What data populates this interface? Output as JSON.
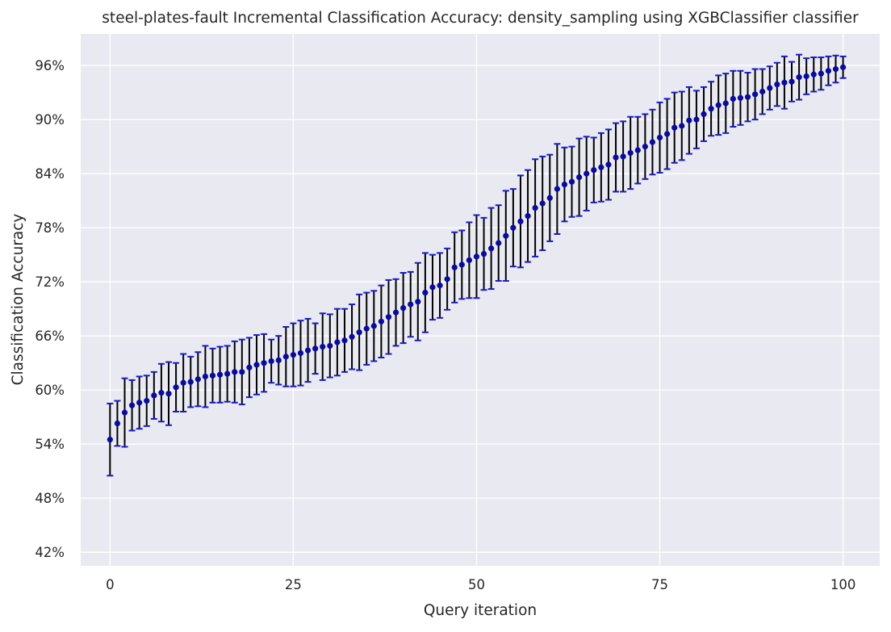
{
  "chart_data": {
    "type": "scatter",
    "title": "steel-plates-fault Incremental Classification Accuracy: density_sampling using XGBClassifier classifier",
    "xlabel": "Query iteration",
    "ylabel": "Classification Accuracy",
    "xlim": [
      -4,
      105
    ],
    "ylim": [
      40.5,
      99.5
    ],
    "x_ticks": [
      0,
      25,
      50,
      75,
      100
    ],
    "x_tick_labels": [
      "0",
      "25",
      "50",
      "75",
      "100"
    ],
    "y_ticks": [
      42,
      48,
      54,
      60,
      66,
      72,
      78,
      84,
      90,
      96
    ],
    "y_tick_labels": [
      "42%",
      "48%",
      "54%",
      "60%",
      "66%",
      "72%",
      "78%",
      "84%",
      "90%",
      "96%"
    ],
    "grid": true,
    "legend": "none",
    "colors": {
      "background": "#e9e9f1",
      "grid": "#ffffff",
      "marker": "#0a0aa0",
      "errorbar": "#000000",
      "caps": "#1a1ac8"
    },
    "series": [
      {
        "x": [
          0,
          1,
          2,
          3,
          4,
          5,
          6,
          7,
          8,
          9,
          10,
          11,
          12,
          13,
          14,
          15,
          16,
          17,
          18,
          19,
          20,
          21,
          22,
          23,
          24,
          25,
          26,
          27,
          28,
          29,
          30,
          31,
          32,
          33,
          34,
          35,
          36,
          37,
          38,
          39,
          40,
          41,
          42,
          43,
          44,
          45,
          46,
          47,
          48,
          49,
          50,
          51,
          52,
          53,
          54,
          55,
          56,
          57,
          58,
          59,
          60,
          61,
          62,
          63,
          64,
          65,
          66,
          67,
          68,
          69,
          70,
          71,
          72,
          73,
          74,
          75,
          76,
          77,
          78,
          79,
          80,
          81,
          82,
          83,
          84,
          85,
          86,
          87,
          88,
          89,
          90,
          91,
          92,
          93,
          94,
          95,
          96,
          97,
          98,
          99,
          100
        ],
        "y": [
          54.5,
          56.3,
          57.5,
          58.3,
          58.6,
          58.8,
          59.4,
          59.7,
          59.6,
          60.3,
          60.8,
          60.9,
          61.2,
          61.5,
          61.6,
          61.7,
          61.8,
          62.0,
          62.0,
          62.5,
          62.8,
          63.0,
          63.2,
          63.3,
          63.7,
          63.9,
          64.1,
          64.4,
          64.6,
          64.8,
          64.9,
          65.3,
          65.5,
          65.9,
          66.4,
          66.8,
          67.1,
          67.6,
          68.1,
          68.6,
          69.1,
          69.5,
          69.8,
          70.8,
          71.4,
          71.6,
          72.3,
          73.6,
          73.9,
          74.4,
          74.8,
          75.1,
          75.7,
          76.3,
          77.1,
          78.0,
          78.7,
          79.3,
          80.2,
          80.7,
          81.3,
          82.3,
          82.8,
          83.1,
          83.6,
          84.0,
          84.4,
          84.7,
          85.0,
          85.8,
          85.9,
          86.3,
          86.6,
          87.0,
          87.5,
          88.0,
          88.4,
          89.1,
          89.3,
          89.9,
          90.0,
          90.6,
          91.2,
          91.6,
          91.8,
          92.3,
          92.4,
          92.5,
          92.8,
          93.1,
          93.5,
          93.9,
          94.1,
          94.2,
          94.7,
          94.8,
          95.0,
          95.1,
          95.4,
          95.6,
          95.8
        ],
        "err": [
          4.0,
          2.5,
          3.8,
          2.8,
          2.9,
          2.8,
          2.6,
          3.2,
          3.5,
          2.7,
          3.2,
          2.8,
          3.0,
          3.4,
          3.0,
          3.1,
          3.1,
          3.4,
          3.6,
          3.3,
          3.3,
          3.2,
          2.4,
          2.7,
          3.3,
          3.5,
          3.6,
          3.5,
          2.8,
          3.7,
          3.5,
          3.7,
          3.5,
          3.6,
          4.2,
          4.0,
          3.9,
          4.0,
          4.1,
          3.7,
          3.9,
          3.6,
          4.3,
          4.4,
          3.6,
          3.6,
          3.4,
          3.9,
          3.8,
          4.2,
          4.6,
          4.0,
          4.5,
          4.2,
          5.0,
          4.3,
          5.1,
          5.1,
          5.4,
          5.2,
          4.8,
          5.0,
          4.1,
          3.9,
          4.3,
          4.1,
          3.6,
          3.8,
          3.9,
          3.8,
          3.9,
          4.0,
          3.7,
          3.6,
          3.6,
          3.9,
          3.9,
          3.9,
          3.8,
          3.7,
          3.2,
          3.0,
          3.0,
          3.3,
          3.3,
          3.1,
          3.0,
          2.7,
          2.8,
          2.5,
          2.4,
          2.4,
          2.9,
          2.2,
          2.5,
          2.0,
          1.9,
          1.8,
          1.6,
          1.5,
          1.2
        ]
      }
    ]
  }
}
